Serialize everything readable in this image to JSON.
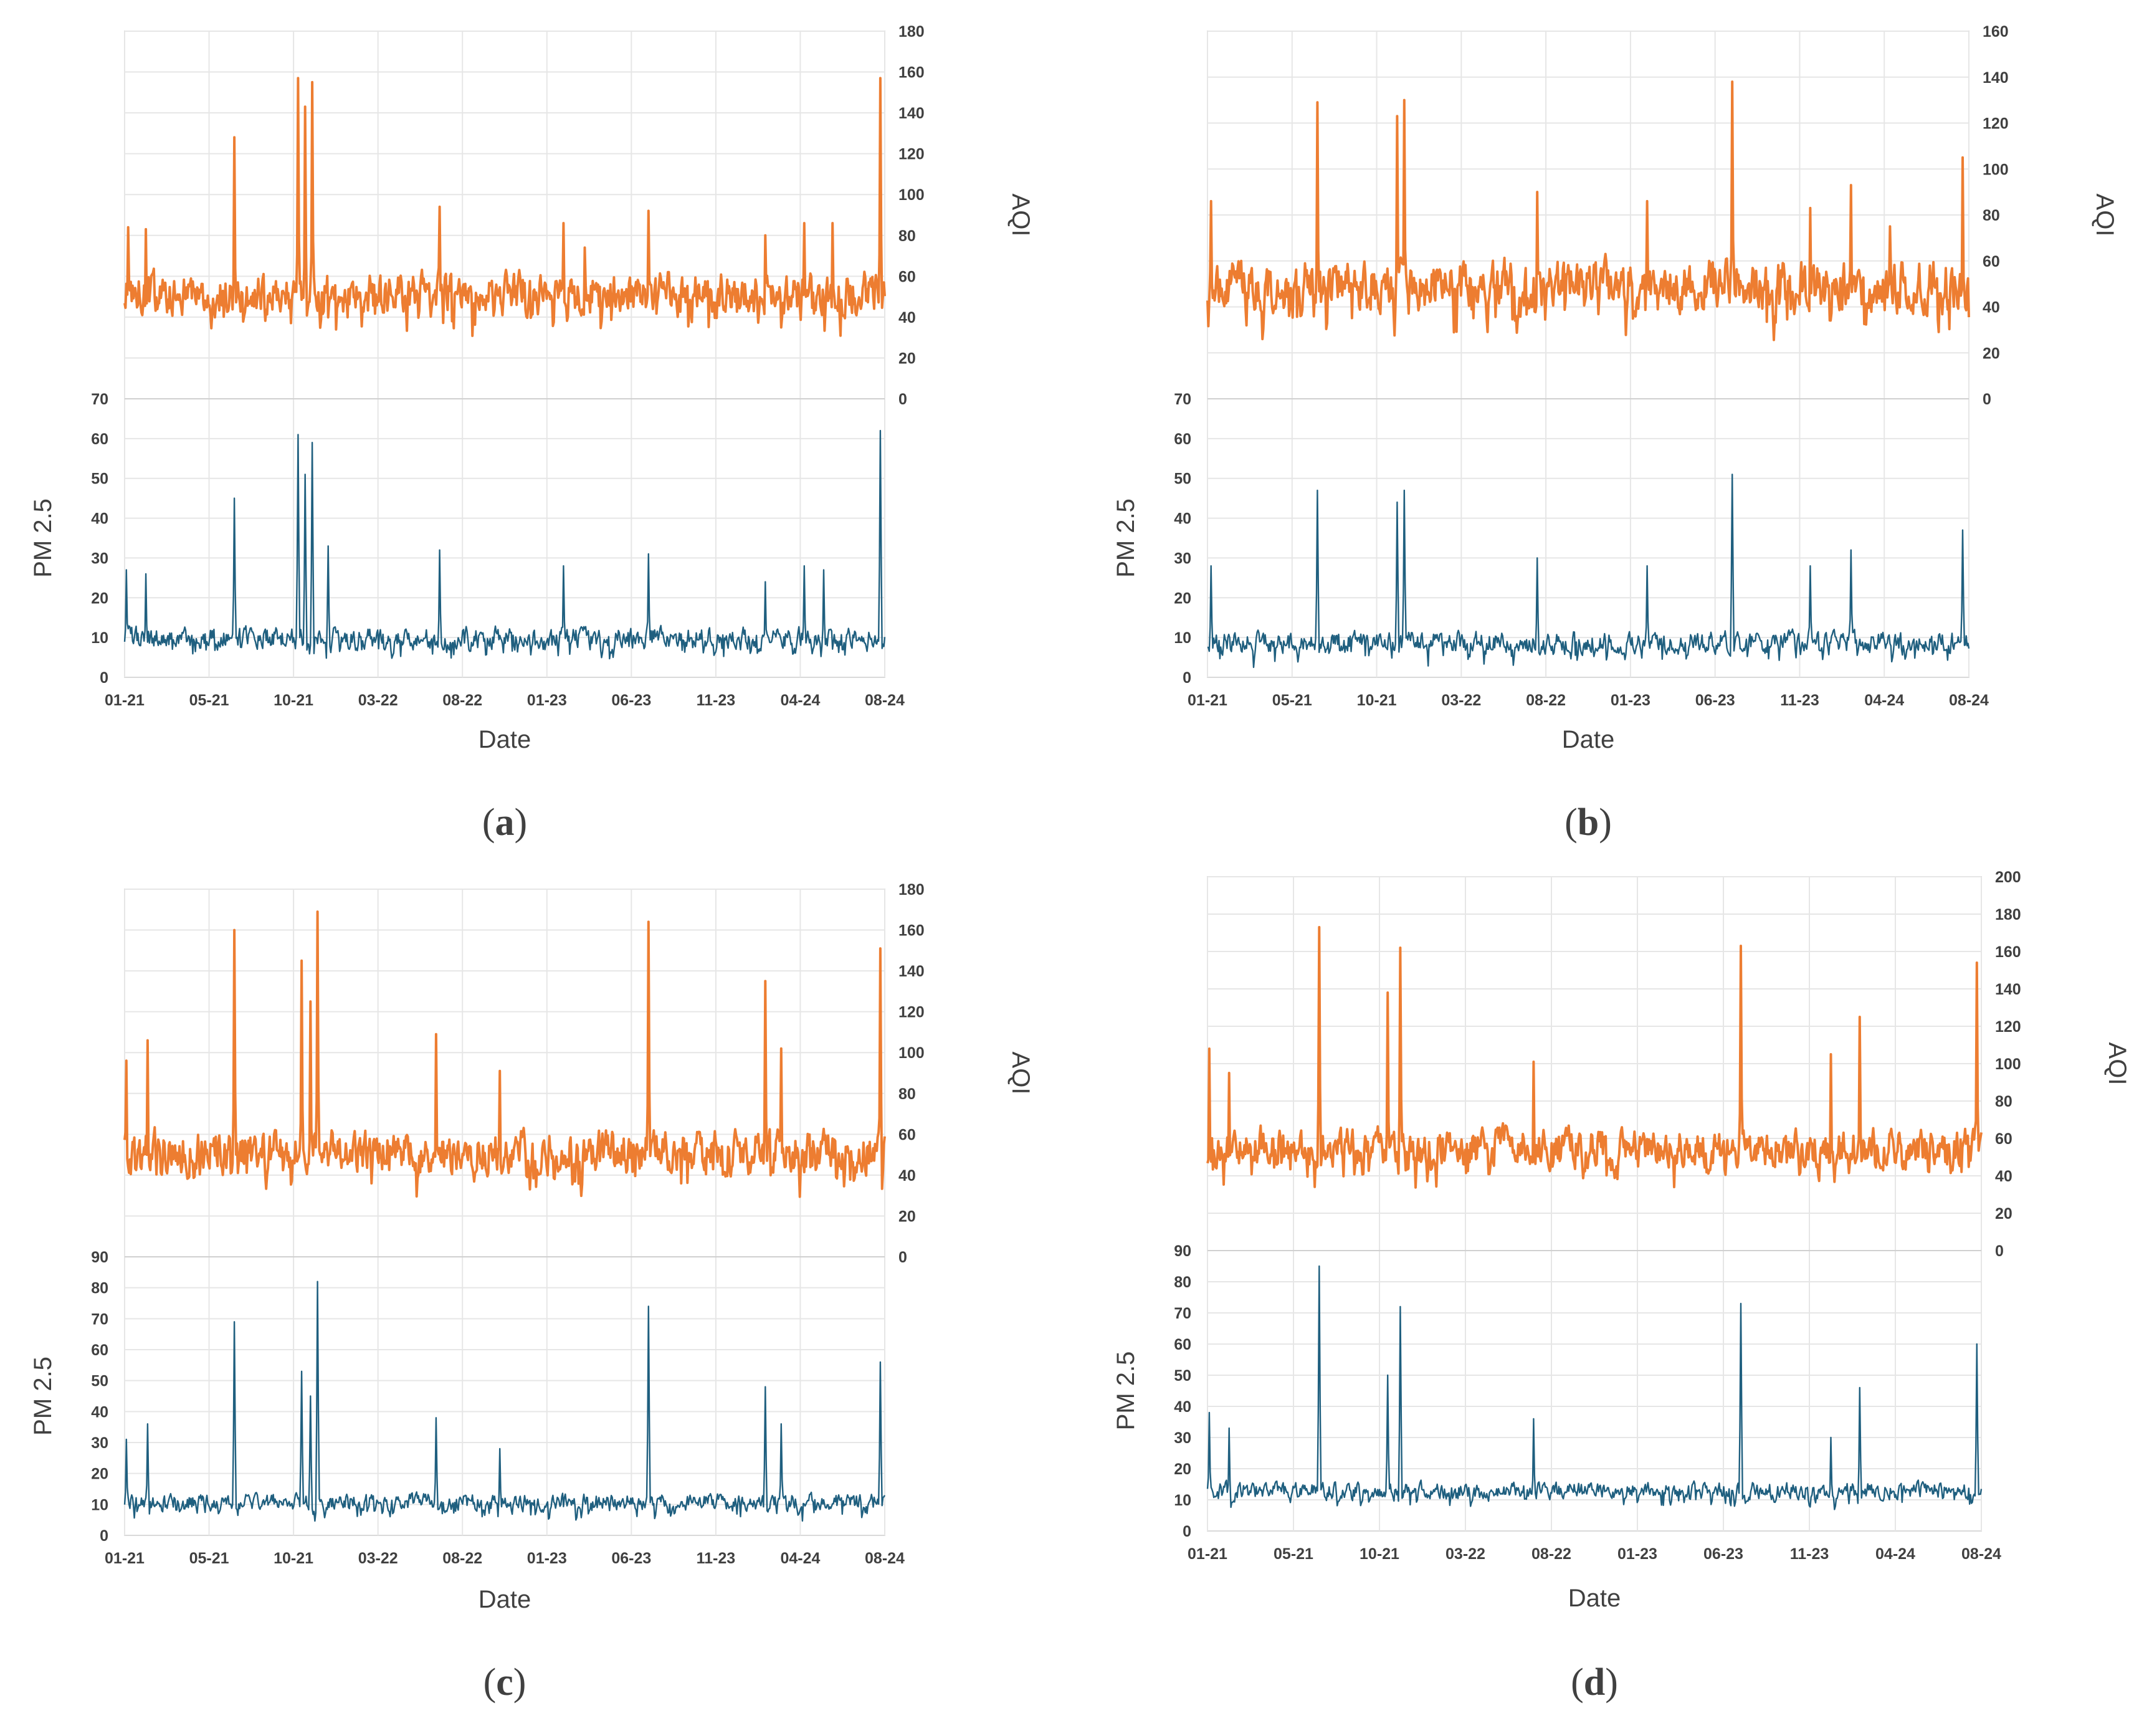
{
  "figure": {
    "colors": {
      "aqi": "#ED7D31",
      "pm25": "#1F5F7F",
      "grid": "#E6E6E6",
      "text": "#404040"
    },
    "x_tick_labels": [
      "01-21",
      "05-21",
      "10-21",
      "03-22",
      "08-22",
      "01-23",
      "06-23",
      "11-23",
      "04-24",
      "08-24"
    ]
  },
  "chart_data": [
    {
      "panel": "a",
      "caption": {
        "open": "(",
        "letter": "a",
        "close": ")"
      },
      "type": "line",
      "xlabel": "Date",
      "x_range": [
        "01-21",
        "08-24"
      ],
      "aqi": {
        "axis_label": "AQI",
        "ylim": [
          0,
          180
        ],
        "ticks": [
          0,
          20,
          40,
          60,
          80,
          100,
          120,
          140,
          160,
          180
        ],
        "baseline": 52,
        "noise": 15,
        "seed": 11,
        "spikes": [
          [
            4,
            84
          ],
          [
            24,
            83
          ],
          [
            124,
            128
          ],
          [
            196,
            157
          ],
          [
            204,
            143
          ],
          [
            212,
            155
          ],
          [
            356,
            94
          ],
          [
            496,
            86
          ],
          [
            520,
            74
          ],
          [
            592,
            92
          ],
          [
            724,
            80
          ],
          [
            768,
            86
          ],
          [
            800,
            86
          ],
          [
            854,
            157
          ]
        ]
      },
      "pm25": {
        "axis_label": "PM 2.5",
        "ylim": [
          0,
          70
        ],
        "ticks": [
          0,
          10,
          20,
          30,
          40,
          50,
          60,
          70
        ],
        "baseline": 10,
        "noise": 4,
        "seed": 12,
        "spikes": [
          [
            2,
            27
          ],
          [
            24,
            26
          ],
          [
            124,
            45
          ],
          [
            196,
            61
          ],
          [
            204,
            51
          ],
          [
            212,
            59
          ],
          [
            230,
            33
          ],
          [
            356,
            32
          ],
          [
            496,
            28
          ],
          [
            592,
            31
          ],
          [
            724,
            24
          ],
          [
            768,
            28
          ],
          [
            790,
            27
          ],
          [
            854,
            62
          ]
        ]
      }
    },
    {
      "panel": "b",
      "caption": {
        "open": "(",
        "letter": "b",
        "close": ")"
      },
      "type": "line",
      "xlabel": "Date",
      "x_range": [
        "01-21",
        "08-24"
      ],
      "aqi": {
        "axis_label": "AQI",
        "ylim": [
          0,
          160
        ],
        "ticks": [
          0,
          20,
          40,
          60,
          80,
          100,
          120,
          140,
          160
        ],
        "baseline": 50,
        "noise": 16,
        "seed": 21,
        "spikes": [
          [
            4,
            86
          ],
          [
            124,
            129
          ],
          [
            214,
            123
          ],
          [
            222,
            130
          ],
          [
            372,
            90
          ],
          [
            496,
            86
          ],
          [
            592,
            138
          ],
          [
            680,
            83
          ],
          [
            726,
            93
          ],
          [
            770,
            75
          ],
          [
            852,
            105
          ]
        ]
      },
      "pm25": {
        "axis_label": "PM 2.5",
        "ylim": [
          0,
          70
        ],
        "ticks": [
          0,
          10,
          20,
          30,
          40,
          50,
          60,
          70
        ],
        "baseline": 9,
        "noise": 4,
        "seed": 22,
        "spikes": [
          [
            4,
            28
          ],
          [
            124,
            47
          ],
          [
            214,
            44
          ],
          [
            222,
            47
          ],
          [
            372,
            30
          ],
          [
            496,
            28
          ],
          [
            592,
            51
          ],
          [
            680,
            28
          ],
          [
            726,
            32
          ],
          [
            852,
            37
          ]
        ]
      }
    },
    {
      "panel": "c",
      "caption": {
        "open": "(",
        "letter": "c",
        "close": ")"
      },
      "type": "line",
      "xlabel": "Date",
      "x_range": [
        "01-21",
        "08-24"
      ],
      "aqi": {
        "axis_label": "AQI",
        "ylim": [
          0,
          180
        ],
        "ticks": [
          0,
          20,
          40,
          60,
          80,
          100,
          120,
          140,
          160,
          180
        ],
        "baseline": 52,
        "noise": 15,
        "seed": 31,
        "spikes": [
          [
            2,
            96
          ],
          [
            26,
            106
          ],
          [
            124,
            160
          ],
          [
            200,
            145
          ],
          [
            210,
            125
          ],
          [
            218,
            169
          ],
          [
            352,
            109
          ],
          [
            424,
            91
          ],
          [
            592,
            164
          ],
          [
            724,
            135
          ],
          [
            742,
            102
          ],
          [
            854,
            151
          ]
        ]
      },
      "pm25": {
        "axis_label": "PM 2.5",
        "ylim": [
          0,
          90
        ],
        "ticks": [
          0,
          10,
          20,
          30,
          40,
          50,
          60,
          70,
          80,
          90
        ],
        "baseline": 11,
        "noise": 4,
        "seed": 32,
        "spikes": [
          [
            2,
            31
          ],
          [
            26,
            36
          ],
          [
            124,
            69
          ],
          [
            200,
            53
          ],
          [
            210,
            45
          ],
          [
            218,
            82
          ],
          [
            352,
            38
          ],
          [
            424,
            28
          ],
          [
            592,
            74
          ],
          [
            724,
            48
          ],
          [
            742,
            36
          ],
          [
            854,
            56
          ]
        ]
      }
    },
    {
      "panel": "d",
      "caption": {
        "open": "(",
        "letter": "d",
        "close": ")"
      },
      "type": "line",
      "xlabel": "Date",
      "x_range": [
        "01-21",
        "08-24"
      ],
      "aqi": {
        "axis_label": "AQI",
        "ylim": [
          0,
          200
        ],
        "ticks": [
          0,
          20,
          40,
          60,
          80,
          100,
          120,
          140,
          160,
          180,
          200
        ],
        "baseline": 56,
        "noise": 15,
        "seed": 41,
        "spikes": [
          [
            2,
            108
          ],
          [
            24,
            95
          ],
          [
            124,
            173
          ],
          [
            200,
            138
          ],
          [
            214,
            162
          ],
          [
            362,
            101
          ],
          [
            592,
            163
          ],
          [
            692,
            105
          ],
          [
            724,
            125
          ],
          [
            854,
            154
          ]
        ]
      },
      "pm25": {
        "axis_label": "PM 2.5",
        "ylim": [
          0,
          90
        ],
        "ticks": [
          0,
          10,
          20,
          30,
          40,
          50,
          60,
          70,
          80,
          90
        ],
        "baseline": 13,
        "noise": 4,
        "seed": 42,
        "spikes": [
          [
            2,
            38
          ],
          [
            24,
            33
          ],
          [
            124,
            85
          ],
          [
            200,
            50
          ],
          [
            214,
            72
          ],
          [
            362,
            36
          ],
          [
            592,
            73
          ],
          [
            692,
            30
          ],
          [
            724,
            46
          ],
          [
            854,
            60
          ]
        ]
      }
    }
  ]
}
